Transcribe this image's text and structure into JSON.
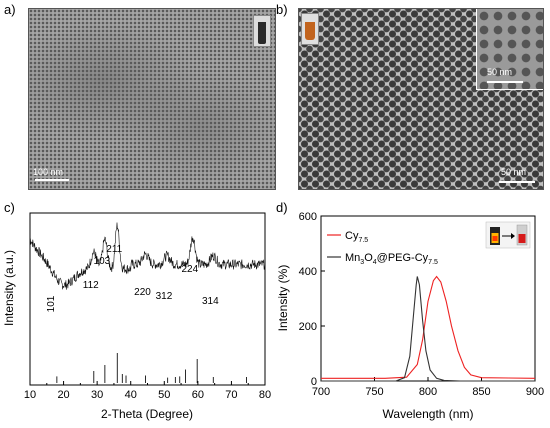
{
  "panels": {
    "a": {
      "label": "a)",
      "scalebar": "100 nm"
    },
    "b": {
      "label": "b)",
      "scalebar_inset": "50 nm",
      "scalebar_main": "50 nm"
    },
    "c": {
      "label": "c)"
    },
    "d": {
      "label": "d)"
    }
  },
  "chart_data": [
    {
      "type": "line",
      "panel": "c",
      "xlabel": "2-Theta (Degree)",
      "ylabel": "Intensity (a.u.)",
      "xlim": [
        10,
        80
      ],
      "xticks": [
        "10",
        "20",
        "30",
        "40",
        "50",
        "60",
        "70",
        "80"
      ],
      "peaks": [
        {
          "label": "101",
          "x": 18
        },
        {
          "label": "112",
          "x": 29
        },
        {
          "label": "103",
          "x": 32.3
        },
        {
          "label": "211",
          "x": 36
        },
        {
          "label": "220",
          "x": 44.4
        },
        {
          "label": "312",
          "x": 50.8
        },
        {
          "label": "224",
          "x": 58.5
        },
        {
          "label": "314",
          "x": 64.6
        }
      ],
      "reference_lines": [
        {
          "x": 18,
          "h": 0.22
        },
        {
          "x": 29,
          "h": 0.4
        },
        {
          "x": 32.3,
          "h": 0.6
        },
        {
          "x": 36,
          "h": 1.0
        },
        {
          "x": 37.5,
          "h": 0.3
        },
        {
          "x": 38.6,
          "h": 0.25
        },
        {
          "x": 44.4,
          "h": 0.25
        },
        {
          "x": 51,
          "h": 0.18
        },
        {
          "x": 53.3,
          "h": 0.2
        },
        {
          "x": 54.6,
          "h": 0.22
        },
        {
          "x": 56.3,
          "h": 0.45
        },
        {
          "x": 59.8,
          "h": 0.8
        },
        {
          "x": 64.6,
          "h": 0.2
        },
        {
          "x": 74.5,
          "h": 0.2
        }
      ]
    },
    {
      "type": "line",
      "panel": "d",
      "xlabel": "Wavelength (nm)",
      "ylabel": "Intensity (%)",
      "xlim": [
        700,
        900
      ],
      "ylim": [
        0,
        600
      ],
      "xticks": [
        "700",
        "750",
        "800",
        "850",
        "900"
      ],
      "yticks": [
        "0",
        "200",
        "400",
        "600"
      ],
      "legend": {
        "placement": "top-left",
        "entries": [
          {
            "main": "Cy",
            "sub": "7.5",
            "color": "#ee2222"
          },
          {
            "main": "Mn",
            "sub1": "3",
            "mid1": "O",
            "sub2": "4",
            "mid2": "@PEG-Cy",
            "sub3": "7.5",
            "color": "#333333"
          }
        ]
      },
      "series": [
        {
          "color": "#ee2222",
          "peak_x": 808,
          "peak_y": 380,
          "points": [
            [
              700,
              10
            ],
            [
              760,
              10
            ],
            [
              780,
              14
            ],
            [
              790,
              60
            ],
            [
              795,
              150
            ],
            [
              800,
              290
            ],
            [
              805,
              365
            ],
            [
              808,
              380
            ],
            [
              812,
              360
            ],
            [
              817,
              290
            ],
            [
              822,
              200
            ],
            [
              828,
              110
            ],
            [
              834,
              50
            ],
            [
              840,
              22
            ],
            [
              850,
              12
            ],
            [
              900,
              10
            ]
          ]
        },
        {
          "color": "#333333",
          "peak_x": 790,
          "peak_y": 380,
          "points": [
            [
              700,
              0
            ],
            [
              770,
              0
            ],
            [
              778,
              12
            ],
            [
              783,
              90
            ],
            [
              786,
              220
            ],
            [
              789,
              350
            ],
            [
              790,
              380
            ],
            [
              792,
              350
            ],
            [
              795,
              220
            ],
            [
              798,
              110
            ],
            [
              802,
              40
            ],
            [
              808,
              10
            ],
            [
              815,
              2
            ],
            [
              830,
              0
            ],
            [
              900,
              0
            ]
          ]
        }
      ]
    }
  ]
}
